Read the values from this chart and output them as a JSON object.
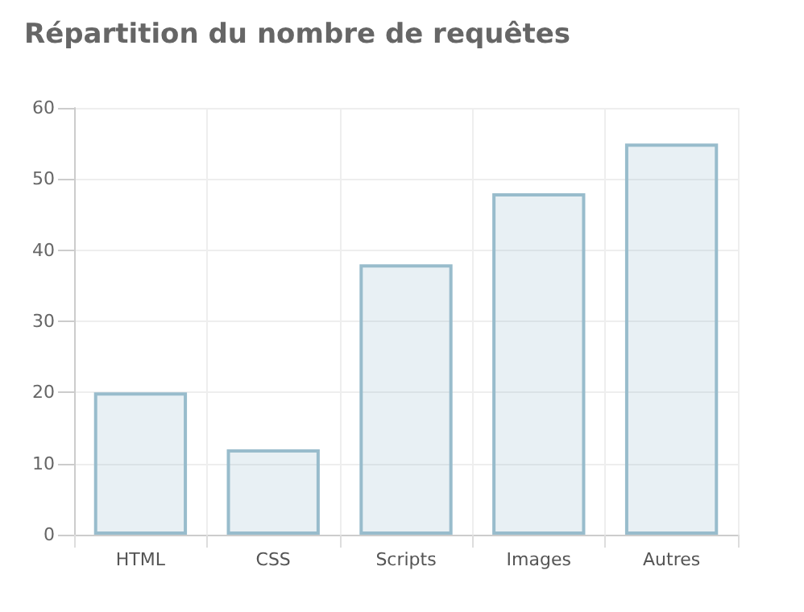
{
  "chart_data": {
    "type": "bar",
    "title": "Répartition du nombre de requêtes",
    "categories": [
      "HTML",
      "CSS",
      "Scripts",
      "Images",
      "Autres"
    ],
    "values": [
      20,
      12,
      38,
      48,
      55
    ],
    "color": "#98bccc",
    "ylim": [
      0,
      60
    ],
    "yticks": [
      0,
      10,
      20,
      30,
      40,
      50,
      60
    ],
    "grid": true
  }
}
